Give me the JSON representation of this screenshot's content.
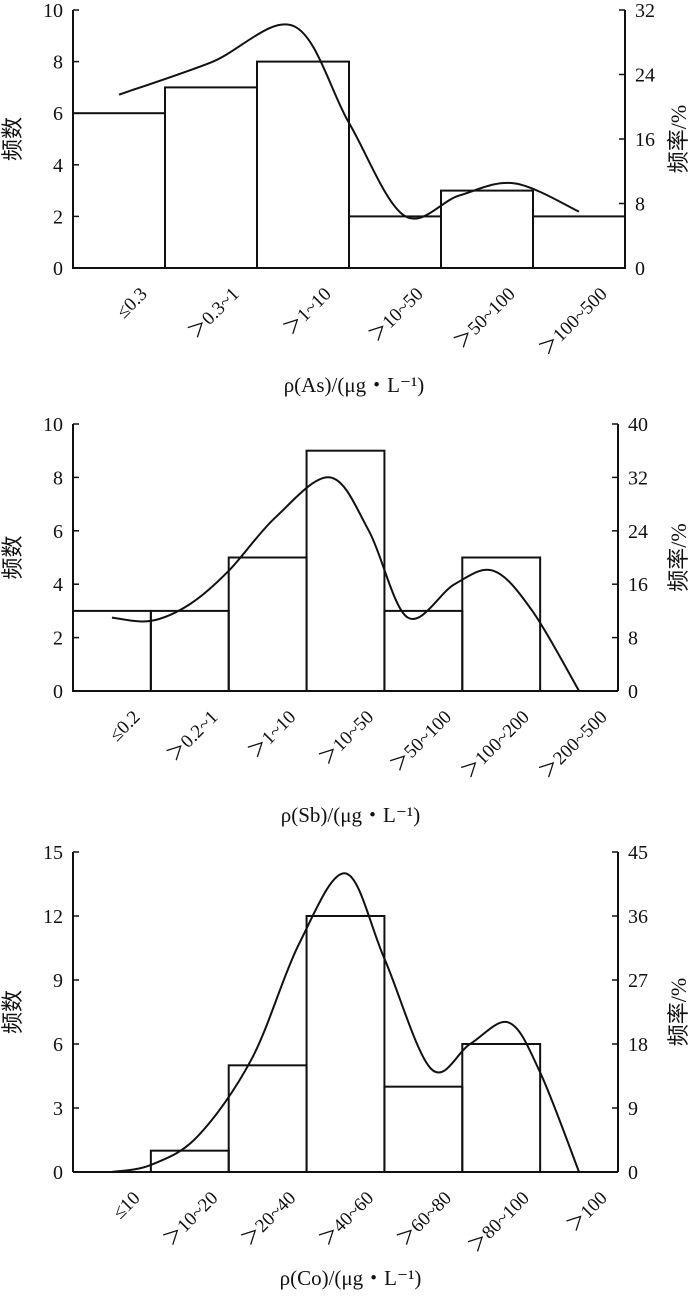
{
  "chart_data": [
    {
      "type": "bar",
      "categories": [
        "≤0.3",
        "＞0.3~1",
        "＞1~10",
        "＞10~50",
        "＞50~100",
        "＞100~500"
      ],
      "values": [
        6,
        7,
        8,
        2,
        3,
        2
      ],
      "curve": {
        "x": [
          0.5,
          1.5,
          2.4,
          3.0,
          3.6,
          4.2,
          4.8,
          5.5
        ],
        "y": [
          21.5,
          25.5,
          30.0,
          18.0,
          6.5,
          9.0,
          10.5,
          7.0
        ]
      },
      "xlabel": "ρ(As)/(μg・L⁻¹)",
      "ylabel_left": "频数",
      "ylabel_right": "频率/%",
      "ylim_left": [
        0,
        10
      ],
      "yticks_left": [
        0,
        2,
        4,
        6,
        8,
        10
      ],
      "ylim_right": [
        0,
        32
      ],
      "yticks_right": [
        0,
        8,
        16,
        24,
        32
      ],
      "grid": false,
      "legend": "none"
    },
    {
      "type": "bar",
      "categories": [
        "≤0.2",
        "＞0.2~1",
        "＞1~10",
        "＞10~50",
        "＞50~100",
        "＞100~200",
        "＞200~500"
      ],
      "values": [
        3,
        3,
        5,
        9,
        3,
        5,
        0
      ],
      "curve": {
        "x": [
          0.5,
          1.0,
          1.5,
          2.0,
          2.6,
          3.3,
          3.8,
          4.3,
          4.9,
          5.4,
          5.9,
          6.5
        ],
        "y": [
          11.0,
          10.5,
          13.0,
          18.0,
          26.0,
          32.0,
          24.0,
          11.0,
          16.0,
          18.0,
          12.0,
          0.0
        ]
      },
      "xlabel": "ρ(Sb)/(μg・L⁻¹)",
      "ylabel_left": "频数",
      "ylabel_right": "频率/%",
      "ylim_left": [
        0,
        10
      ],
      "yticks_left": [
        0,
        2,
        4,
        6,
        8,
        10
      ],
      "ylim_right": [
        0,
        40
      ],
      "yticks_right": [
        0,
        8,
        16,
        24,
        32,
        40
      ],
      "grid": false,
      "legend": "none"
    },
    {
      "type": "bar",
      "categories": [
        "≤10",
        "＞10~20",
        "＞20~40",
        "＞40~60",
        "＞60~80",
        "＞80~100",
        "＞100"
      ],
      "values": [
        0,
        1,
        5,
        12,
        4,
        6,
        0
      ],
      "curve": {
        "x": [
          0.5,
          1.0,
          1.6,
          2.3,
          2.9,
          3.5,
          4.0,
          4.6,
          5.1,
          5.6,
          6.0,
          6.5
        ],
        "y": [
          0.0,
          1.0,
          5.0,
          16.0,
          32.0,
          42.0,
          30.0,
          14.5,
          18.0,
          21.0,
          14.0,
          0.0
        ]
      },
      "xlabel": "ρ(Co)/(μg・L⁻¹)",
      "ylabel_left": "频数",
      "ylabel_right": "频率/%",
      "ylim_left": [
        0,
        15
      ],
      "yticks_left": [
        0,
        3,
        6,
        9,
        12,
        15
      ],
      "ylim_right": [
        0,
        45
      ],
      "yticks_right": [
        0,
        9,
        18,
        27,
        36,
        45
      ],
      "grid": false,
      "legend": "none"
    }
  ]
}
